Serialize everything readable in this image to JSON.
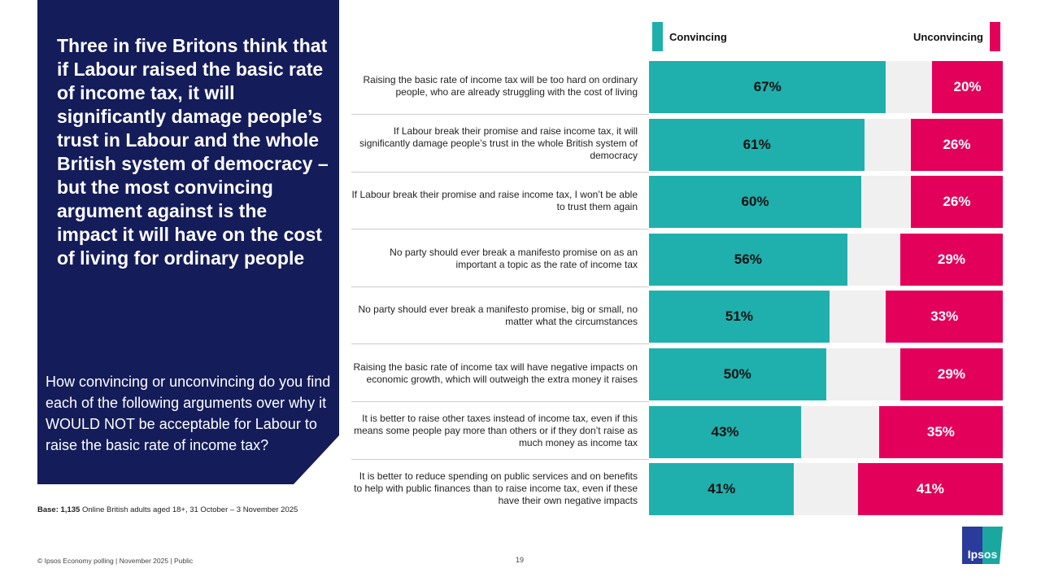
{
  "headline": "Three in five Britons think that if Labour raised the basic rate of income tax, it will significantly damage people’s trust in Labour and the whole British system of democracy – but the most convincing argument against is the impact it will have on the cost of living for ordinary people",
  "question": "How convincing or unconvincing do you find each of the following arguments over why it WOULD NOT be acceptable for Labour to raise the basic rate of income tax?",
  "base": {
    "label": "Base:",
    "n": "1,135",
    "text": "Online British adults aged 18+, 31 October – 3 November 2025"
  },
  "footer": "© Ipsos  Economy polling | November 2025 | Public",
  "page_number": "19",
  "logo": "Ipsos",
  "colors": {
    "convincing": "#1fb0ad",
    "unconvincing": "#e3005b",
    "panel": "#141c5a"
  },
  "chart_data": {
    "type": "bar",
    "orientation": "horizontal-stacked-diverging",
    "xlim": [
      0,
      100
    ],
    "legend": {
      "placement": "top",
      "entries": [
        "Convincing",
        "Unconvincing"
      ]
    },
    "categories": [
      "Raising the basic rate of income tax will be too hard on ordinary people, who are already struggling with the cost of living",
      "If Labour break their promise and raise income tax, it will significantly damage people’s trust in the whole British system of democracy",
      "If Labour break their promise and raise income tax, I won’t be able to trust them again",
      "No party should ever break a manifesto promise on as an important a topic as the rate of income tax",
      "No party should ever break a manifesto promise, big or small, no matter what the circumstances",
      "Raising the basic rate of income tax will have negative impacts on economic growth, which will outweigh the extra money it raises",
      "It is better to raise other taxes instead of income tax, even if this means some people pay more than others or if they don’t raise as much money as income tax",
      "It is better to reduce spending on public services  and on benefits to help with public finances than to raise income tax, even if these have their own negative impacts"
    ],
    "series": [
      {
        "name": "Convincing",
        "values": [
          67,
          61,
          60,
          56,
          51,
          50,
          43,
          41
        ]
      },
      {
        "name": "Unconvincing",
        "values": [
          20,
          26,
          26,
          29,
          33,
          29,
          35,
          41
        ]
      }
    ]
  }
}
